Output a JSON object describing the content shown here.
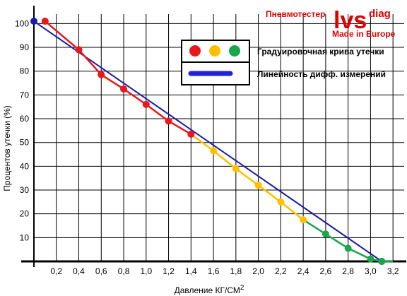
{
  "chart_data": {
    "type": "line",
    "xlabel": "Давление КГ/СМ",
    "xlabel_superscript": "2",
    "ylabel": "Процентов утечки (%)",
    "xlim": [
      0,
      3.3
    ],
    "ylim": [
      0,
      105
    ],
    "grid": true,
    "x_ticks": [
      "0,2",
      "0,4",
      "0,6",
      "0,8",
      "1,0",
      "1,2",
      "1,4",
      "1,6",
      "1,8",
      "2,0",
      "2,2",
      "2,4",
      "2,6",
      "2,8",
      "3,0",
      "3,2"
    ],
    "y_ticks": [
      "10",
      "20",
      "30",
      "40",
      "50",
      "60",
      "70",
      "80",
      "90",
      "100"
    ],
    "series": [
      {
        "name": "Градуировочная крива утечки",
        "segments": [
          {
            "color": "#e8181b",
            "points": [
              [
                0.1,
                101
              ],
              [
                0.4,
                89
              ],
              [
                0.6,
                78.5
              ],
              [
                0.8,
                72.5
              ],
              [
                1.0,
                66
              ],
              [
                1.2,
                59
              ],
              [
                1.4,
                53.5
              ]
            ]
          },
          {
            "color": "#ffc000",
            "points": [
              [
                1.4,
                53.5
              ],
              [
                1.6,
                46.5
              ],
              [
                1.8,
                39
              ],
              [
                2.0,
                32
              ],
              [
                2.2,
                25
              ],
              [
                2.4,
                17.5
              ]
            ]
          },
          {
            "color": "#1aa64a",
            "points": [
              [
                2.4,
                17.5
              ],
              [
                2.6,
                11.5
              ],
              [
                2.8,
                5.5
              ],
              [
                3.0,
                1
              ],
              [
                3.1,
                0
              ],
              [
                3.2,
                0
              ]
            ]
          }
        ]
      },
      {
        "name": "Линейность дифф. измерений",
        "color": "#1a1aa8",
        "points": [
          [
            0,
            101
          ],
          [
            3.1,
            0
          ]
        ]
      }
    ],
    "legend": {
      "placement": "top-right",
      "items": [
        {
          "label": "Градуировочная крива утечки",
          "marker": "dots",
          "colors": [
            "#e8181b",
            "#ffc000",
            "#1aa64a"
          ]
        },
        {
          "label": "Линейность дифф. измерений",
          "marker": "bar",
          "colors": [
            "#2222dd"
          ]
        }
      ]
    }
  },
  "brand": {
    "prefix": "Пневмотестер",
    "logo_main": "lvs",
    "logo_sub": "diag",
    "tagline": "Made in Europe"
  }
}
